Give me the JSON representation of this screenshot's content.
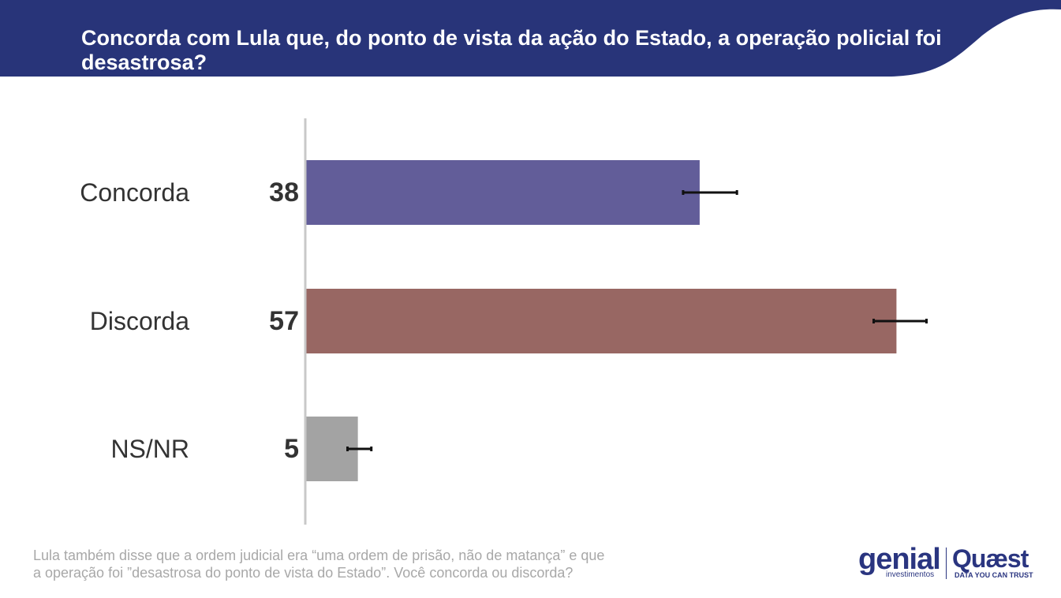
{
  "header": {
    "title": "Concorda com Lula que, do ponto de vista da ação do Estado, a operação policial foi desastrosa?",
    "color": "#283479"
  },
  "chart_data": {
    "type": "bar",
    "orientation": "horizontal",
    "categories": [
      "Concorda",
      "Discorda",
      "NS/NR"
    ],
    "values": [
      38,
      57,
      5
    ],
    "value_labels": [
      "38",
      "57",
      "5"
    ],
    "colors": [
      "#625d99",
      "#986763",
      "#a3a3a3"
    ],
    "error_bars": [
      {
        "low": 36.4,
        "high": 41.6
      },
      {
        "low": 54.8,
        "high": 59.9
      },
      {
        "low": 4.0,
        "high": 6.3
      }
    ],
    "xlim": [
      0,
      60
    ],
    "grid": false,
    "legend": "none"
  },
  "footer": {
    "note_line1": "Lula também disse que a ordem judicial era “uma ordem de prisão, não de matança” e que",
    "note_line2": "a operação foi ”desastrosa do ponto de vista do Estado”. Você concorda ou discorda?"
  },
  "logos": {
    "genial": "genial",
    "genial_sub": "investimentos",
    "quaest": "Quæst",
    "quaest_sub": "DATA YOU CAN TRUST",
    "color": "#2a3580"
  }
}
